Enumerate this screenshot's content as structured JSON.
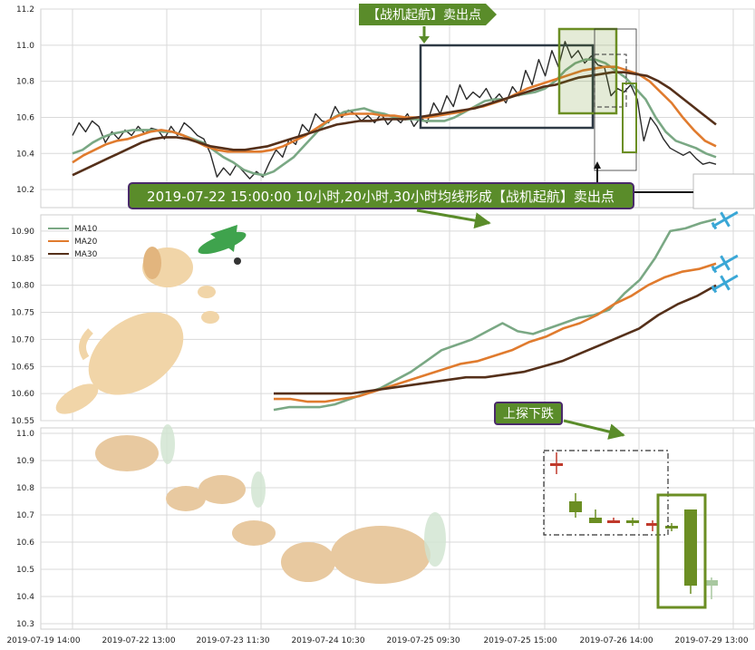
{
  "chart_data": [
    {
      "type": "line",
      "panel": "price",
      "ylim": [
        10.1,
        11.2
      ],
      "y_ticks": [
        "11.2",
        "11.0",
        "10.8",
        "10.6",
        "10.4",
        "10.2"
      ],
      "grid": true,
      "series": [
        {
          "key": "price",
          "color": "#2b2b2b",
          "values": [
            10.5,
            10.57,
            10.52,
            10.58,
            10.55,
            10.46,
            10.52,
            10.48,
            10.53,
            10.5,
            10.55,
            10.51,
            10.54,
            10.53,
            10.48,
            10.55,
            10.5,
            10.57,
            10.54,
            10.5,
            10.48,
            10.4,
            10.27,
            10.32,
            10.28,
            10.34,
            10.3,
            10.26,
            10.3,
            10.27,
            10.35,
            10.42,
            10.38,
            10.48,
            10.45,
            10.56,
            10.52,
            10.62,
            10.58,
            10.57,
            10.66,
            10.6,
            10.64,
            10.62,
            10.58,
            10.61,
            10.57,
            10.62,
            10.56,
            10.6,
            10.57,
            10.62,
            10.55,
            10.6,
            10.57,
            10.68,
            10.62,
            10.72,
            10.66,
            10.78,
            10.7,
            10.74,
            10.71,
            10.76,
            10.69,
            10.73,
            10.68,
            10.77,
            10.72,
            10.86,
            10.78,
            10.92,
            10.83,
            10.97,
            10.88,
            11.02,
            10.93,
            10.97,
            10.9,
            10.94,
            10.89,
            10.88,
            10.72,
            10.76,
            10.74,
            10.78,
            10.7,
            10.47,
            10.6,
            10.55,
            10.48,
            10.43,
            10.41,
            10.39,
            10.41,
            10.37,
            10.34,
            10.35,
            10.34
          ]
        },
        {
          "key": "ma10",
          "color": "#7aa884",
          "values": [
            10.4,
            10.42,
            10.46,
            10.49,
            10.51,
            10.52,
            10.53,
            10.53,
            10.53,
            10.52,
            10.52,
            10.5,
            10.48,
            10.46,
            10.42,
            10.38,
            10.35,
            10.31,
            10.29,
            10.28,
            10.3,
            10.34,
            10.38,
            10.44,
            10.5,
            10.56,
            10.6,
            10.63,
            10.64,
            10.65,
            10.63,
            10.62,
            10.6,
            10.59,
            10.59,
            10.58,
            10.58,
            10.58,
            10.6,
            10.63,
            10.66,
            10.69,
            10.7,
            10.7,
            10.72,
            10.73,
            10.74,
            10.76,
            10.8,
            10.86,
            10.9,
            10.92,
            10.92,
            10.9,
            10.86,
            10.82,
            10.76,
            10.7,
            10.6,
            10.52,
            10.47,
            10.45,
            10.43,
            10.4,
            10.38
          ]
        },
        {
          "key": "ma20",
          "color": "#e07b2e",
          "values": [
            10.35,
            10.39,
            10.42,
            10.45,
            10.47,
            10.48,
            10.5,
            10.52,
            10.53,
            10.52,
            10.5,
            10.47,
            10.44,
            10.42,
            10.41,
            10.41,
            10.41,
            10.41,
            10.42,
            10.44,
            10.47,
            10.5,
            10.54,
            10.58,
            10.61,
            10.62,
            10.62,
            10.62,
            10.61,
            10.61,
            10.6,
            10.6,
            10.6,
            10.61,
            10.62,
            10.63,
            10.65,
            10.66,
            10.68,
            10.7,
            10.73,
            10.76,
            10.78,
            10.8,
            10.82,
            10.84,
            10.86,
            10.87,
            10.88,
            10.88,
            10.86,
            10.84,
            10.8,
            10.74,
            10.68,
            10.6,
            10.53,
            10.47,
            10.44
          ]
        },
        {
          "key": "ma30",
          "color": "#55301a",
          "values": [
            10.28,
            10.31,
            10.34,
            10.37,
            10.4,
            10.43,
            10.46,
            10.48,
            10.49,
            10.49,
            10.48,
            10.46,
            10.44,
            10.43,
            10.42,
            10.42,
            10.43,
            10.44,
            10.46,
            10.48,
            10.5,
            10.52,
            10.54,
            10.56,
            10.57,
            10.58,
            10.58,
            10.59,
            10.59,
            10.59,
            10.6,
            10.61,
            10.62,
            10.63,
            10.64,
            10.65,
            10.67,
            10.69,
            10.71,
            10.73,
            10.75,
            10.77,
            10.78,
            10.8,
            10.82,
            10.83,
            10.84,
            10.85,
            10.85,
            10.84,
            10.83,
            10.8,
            10.76,
            10.71,
            10.66,
            10.61,
            10.56
          ]
        }
      ]
    },
    {
      "type": "line",
      "panel": "moving-averages",
      "ylim": [
        10.55,
        10.93
      ],
      "y_ticks": [
        "10.90",
        "10.85",
        "10.80",
        "10.75",
        "10.70",
        "10.65",
        "10.60",
        "10.55"
      ],
      "grid": true,
      "legend_position": "top-left",
      "series": [
        {
          "name": "MA10",
          "color": "#7aa884",
          "values": [
            10.57,
            10.575,
            10.575,
            10.575,
            10.58,
            10.59,
            10.6,
            10.61,
            10.625,
            10.64,
            10.66,
            10.68,
            10.69,
            10.7,
            10.715,
            10.73,
            10.715,
            10.71,
            10.72,
            10.73,
            10.74,
            10.745,
            10.755,
            10.785,
            10.81,
            10.85,
            10.9,
            10.905,
            10.915,
            10.922
          ]
        },
        {
          "name": "MA20",
          "color": "#e07b2e",
          "values": [
            10.59,
            10.59,
            10.585,
            10.585,
            10.59,
            10.595,
            10.605,
            10.615,
            10.625,
            10.635,
            10.645,
            10.655,
            10.66,
            10.67,
            10.68,
            10.695,
            10.705,
            10.72,
            10.73,
            10.745,
            10.765,
            10.78,
            10.8,
            10.815,
            10.825,
            10.83,
            10.84
          ]
        },
        {
          "name": "MA30",
          "color": "#55301a",
          "values": [
            10.6,
            10.6,
            10.6,
            10.6,
            10.6,
            10.605,
            10.61,
            10.615,
            10.62,
            10.625,
            10.63,
            10.63,
            10.635,
            10.64,
            10.65,
            10.66,
            10.675,
            10.69,
            10.705,
            10.72,
            10.745,
            10.765,
            10.78,
            10.8
          ]
        }
      ]
    },
    {
      "type": "candlestick",
      "panel": "candles",
      "ylim": [
        10.28,
        11.02
      ],
      "y_ticks": [
        "11.0",
        "10.9",
        "10.8",
        "10.7",
        "10.6",
        "10.5",
        "10.4",
        "10.3"
      ],
      "grid": true,
      "candles": [
        {
          "o": 10.89,
          "c": 10.89,
          "h": 10.93,
          "l": 10.85,
          "color": "#c0392b"
        },
        {
          "o": 10.71,
          "c": 10.75,
          "h": 10.78,
          "l": 10.69,
          "color": "#6b8e23"
        },
        {
          "o": 10.67,
          "c": 10.69,
          "h": 10.72,
          "l": 10.67,
          "color": "#6b8e23"
        },
        {
          "o": 10.67,
          "c": 10.68,
          "h": 10.69,
          "l": 10.67,
          "color": "#c0392b"
        },
        {
          "o": 10.67,
          "c": 10.68,
          "h": 10.69,
          "l": 10.66,
          "color": "#6b8e23"
        },
        {
          "o": 10.66,
          "c": 10.67,
          "h": 10.68,
          "l": 10.64,
          "color": "#c0392b"
        },
        {
          "o": 10.65,
          "c": 10.66,
          "h": 10.67,
          "l": 10.64,
          "color": "#6b8e23"
        },
        {
          "o": 10.44,
          "c": 10.72,
          "h": 10.72,
          "l": 10.41,
          "color": "#6b8e23"
        },
        {
          "o": 10.44,
          "c": 10.46,
          "h": 10.47,
          "l": 10.39,
          "color": "#a8c8a0"
        }
      ],
      "x_tick_labels": [
        "2019-07-19 14:00",
        "2019-07-22 13:00",
        "2019-07-23 11:30",
        "2019-07-24 10:30",
        "2019-07-25 09:30",
        "2019-07-25 15:00",
        "2019-07-26 14:00",
        "2019-07-29 13:00"
      ]
    }
  ],
  "annotations": {
    "top_callout": "【战机起航】卖出点",
    "bottom_callout": "2019-07-22 15:00:00 10小时,20小时,30小时均线形成【战机起航】卖出点",
    "candle_callout": "上探下跌"
  },
  "colors": {
    "callout_fill": "#5a8c2a",
    "callout_border": "#4a2a6a",
    "box_dark": "#2e3a45",
    "box_green": "#6b8e23",
    "grid": "#d9d9d9"
  }
}
